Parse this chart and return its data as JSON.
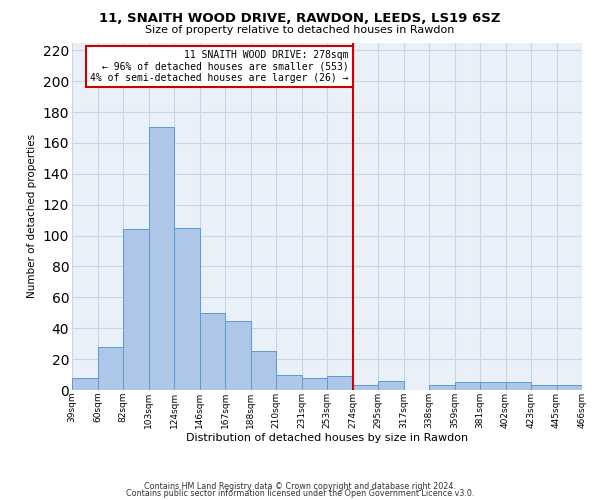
{
  "title1": "11, SNAITH WOOD DRIVE, RAWDON, LEEDS, LS19 6SZ",
  "title2": "Size of property relative to detached houses in Rawdon",
  "xlabel": "Distribution of detached houses by size in Rawdon",
  "ylabel": "Number of detached properties",
  "categories": [
    "39sqm",
    "60sqm",
    "82sqm",
    "103sqm",
    "124sqm",
    "146sqm",
    "167sqm",
    "188sqm",
    "210sqm",
    "231sqm",
    "253sqm",
    "274sqm",
    "295sqm",
    "317sqm",
    "338sqm",
    "359sqm",
    "381sqm",
    "402sqm",
    "423sqm",
    "445sqm",
    "466sqm"
  ],
  "bar_heights": [
    8,
    28,
    104,
    170,
    105,
    50,
    45,
    25,
    10,
    8,
    9,
    3,
    6,
    0,
    3,
    5,
    5,
    5,
    3,
    3
  ],
  "bar_color": "#aec6e8",
  "bar_edgecolor": "#5b9bd5",
  "vline_color": "#cc0000",
  "annotation_line1": "11 SNAITH WOOD DRIVE: 278sqm",
  "annotation_line2": "← 96% of detached houses are smaller (553)",
  "annotation_line3": "4% of semi-detached houses are larger (26) →",
  "annotation_box_edgecolor": "#cc0000",
  "grid_color": "#c8d4e8",
  "bg_color": "#eaf0f8",
  "footer1": "Contains HM Land Registry data © Crown copyright and database right 2024.",
  "footer2": "Contains public sector information licensed under the Open Government Licence v3.0.",
  "ylim": [
    0,
    225
  ],
  "yticks": [
    0,
    20,
    40,
    60,
    80,
    100,
    120,
    140,
    160,
    180,
    200,
    220
  ]
}
